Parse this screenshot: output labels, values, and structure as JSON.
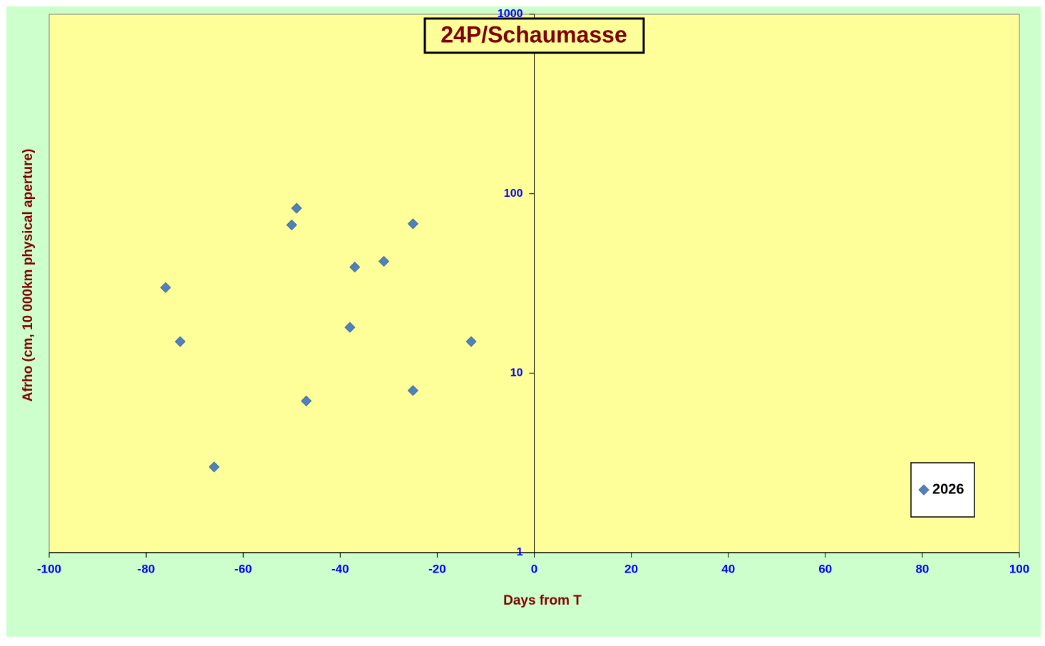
{
  "chart_data": {
    "type": "scatter",
    "title": "24P/Schaumasse",
    "x_label": "Days from  T",
    "y_label": "Afrho  (cm, 10 000km physical  aperture)",
    "xlim": [
      -100,
      100
    ],
    "xticks": [
      -100,
      -80,
      -60,
      -40,
      -20,
      0,
      20,
      40,
      60,
      80,
      100
    ],
    "ylim": [
      1,
      1000
    ],
    "yticks": [
      1,
      10,
      100,
      1000
    ],
    "y_scale": "log",
    "legend_position": "lower right",
    "series": [
      {
        "name": "2026",
        "color": "#4f81bd",
        "x": [
          -76,
          -73,
          -66,
          -50,
          -49,
          -47,
          -38,
          -37,
          -31,
          -25,
          -25,
          -13
        ],
        "values": [
          30,
          15,
          3,
          67,
          83,
          7,
          18,
          39,
          42,
          68,
          8,
          15
        ]
      }
    ]
  }
}
